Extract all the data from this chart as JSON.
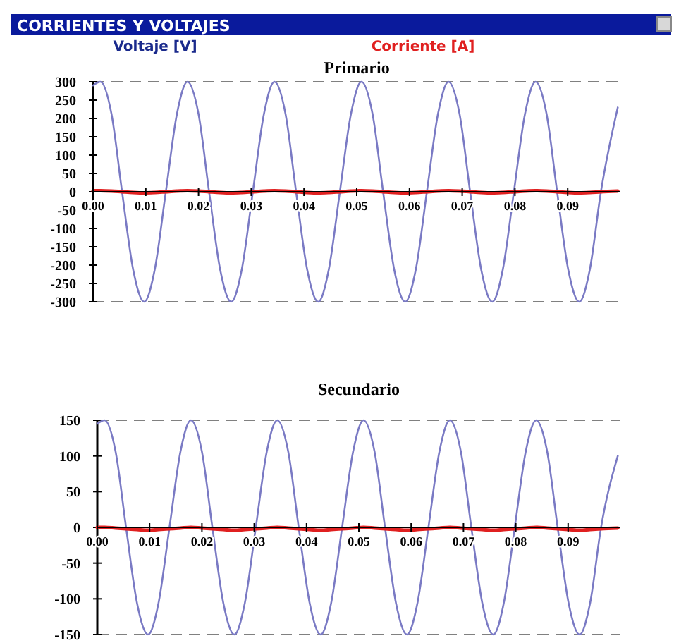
{
  "chart_data": [
    {
      "type": "line",
      "title": "Primario",
      "annotations": [
        "CORRIENTES Y VOLTAJES"
      ],
      "legend": "top",
      "line_style": "solid",
      "grid": false,
      "x": [
        0,
        0.0014,
        0.0035,
        0.0055,
        0.0076,
        0.0097,
        0.0117,
        0.0138,
        0.0159,
        0.0179,
        0.02,
        0.022,
        0.0241,
        0.0262,
        0.0282,
        0.0303,
        0.0324,
        0.0344,
        0.0365,
        0.0385,
        0.0406,
        0.0427,
        0.0447,
        0.0468,
        0.0489,
        0.0509,
        0.053,
        0.055,
        0.0571,
        0.0592,
        0.0612,
        0.0633,
        0.0654,
        0.0674,
        0.0695,
        0.0715,
        0.0736,
        0.0757,
        0.0777,
        0.0798,
        0.0819,
        0.0839,
        0.086,
        0.088,
        0.0901,
        0.0922,
        0.0942,
        0.0963,
        0.0995
      ],
      "series": [
        {
          "name": "Voltaje [V]",
          "color": "#7a7ac4",
          "values": [
            290,
            300,
            212,
            0,
            -212,
            -300,
            -212,
            0,
            212,
            300,
            212,
            0,
            -212,
            -300,
            -212,
            0,
            212,
            300,
            212,
            0,
            -212,
            -300,
            -212,
            0,
            212,
            300,
            212,
            0,
            -212,
            -300,
            -212,
            0,
            212,
            300,
            212,
            0,
            -212,
            -300,
            -212,
            0,
            212,
            300,
            212,
            0,
            -212,
            -300,
            -212,
            0,
            230
          ]
        },
        {
          "name": "Corriente [A]",
          "color": "#e02020",
          "values": [
            3,
            3,
            2,
            0,
            -2,
            -3,
            -2,
            0,
            2,
            3,
            2,
            0,
            -2,
            -3,
            -2,
            0,
            2,
            3,
            2,
            0,
            -2,
            -3,
            -2,
            0,
            2,
            3,
            2,
            0,
            -2,
            -3,
            -2,
            0,
            2,
            3,
            2,
            0,
            -2,
            -3,
            -2,
            0,
            2,
            3,
            2,
            0,
            -2,
            -3,
            -2,
            0,
            2
          ]
        }
      ],
      "xlim": [
        0,
        0.1
      ],
      "xticks": [
        {
          "value": 0,
          "label": "0.00"
        },
        0.01,
        0.02,
        0.03,
        0.04,
        0.05,
        0.06,
        0.07,
        0.08,
        0.09
      ],
      "ylim": [
        -300,
        300
      ],
      "yticks": [
        -300,
        -250,
        -200,
        -150,
        -100,
        -50,
        0,
        50,
        100,
        150,
        200,
        250,
        300
      ],
      "ref_lines": [
        {
          "axis": "y",
          "value": 300,
          "color": "#808080",
          "line_style": "dashed"
        },
        {
          "axis": "y",
          "value": -300,
          "color": "#808080",
          "line_style": "dashed"
        }
      ]
    },
    {
      "type": "line",
      "title": "Secundario",
      "legend": false,
      "line_style": "solid",
      "grid": false,
      "x": [
        0,
        0.0014,
        0.0035,
        0.0055,
        0.0076,
        0.0097,
        0.0117,
        0.0138,
        0.0159,
        0.0179,
        0.02,
        0.022,
        0.0241,
        0.0262,
        0.0282,
        0.0303,
        0.0324,
        0.0344,
        0.0365,
        0.0385,
        0.0406,
        0.0427,
        0.0447,
        0.0468,
        0.0489,
        0.0509,
        0.053,
        0.055,
        0.0571,
        0.0592,
        0.0612,
        0.0633,
        0.0654,
        0.0674,
        0.0695,
        0.0715,
        0.0736,
        0.0757,
        0.0777,
        0.0798,
        0.0819,
        0.0839,
        0.086,
        0.088,
        0.0901,
        0.0922,
        0.0942,
        0.0963,
        0.0995
      ],
      "series": [
        {
          "color": "#7a7ac4",
          "values": [
            145,
            150,
            106,
            0,
            -106,
            -150,
            -106,
            0,
            106,
            150,
            106,
            0,
            -106,
            -150,
            -106,
            0,
            106,
            150,
            106,
            0,
            -106,
            -150,
            -106,
            0,
            106,
            150,
            106,
            0,
            -106,
            -150,
            -106,
            0,
            106,
            150,
            106,
            0,
            -106,
            -150,
            -106,
            0,
            106,
            150,
            106,
            0,
            -106,
            -150,
            -106,
            0,
            100
          ]
        },
        {
          "color": "#e02020",
          "values": [
            0,
            0,
            -1,
            -2,
            -3,
            -4,
            -3,
            -2,
            -1,
            0,
            -1,
            -2,
            -3,
            -4,
            -3,
            -2,
            -1,
            0,
            -1,
            -2,
            -3,
            -4,
            -3,
            -2,
            -1,
            0,
            -1,
            -2,
            -3,
            -4,
            -3,
            -2,
            -1,
            0,
            -1,
            -2,
            -3,
            -4,
            -3,
            -2,
            -1,
            0,
            -1,
            -2,
            -3,
            -4,
            -3,
            -2,
            -1
          ]
        }
      ],
      "xlim": [
        0,
        0.1
      ],
      "xticks": [
        {
          "value": 0,
          "label": "0.00"
        },
        0.01,
        0.02,
        0.03,
        0.04,
        0.05,
        0.06,
        0.07,
        0.08,
        0.09
      ],
      "ylim": [
        -150,
        150
      ],
      "yticks": [
        -150,
        -100,
        -50,
        0,
        50,
        100,
        150
      ],
      "ref_lines": [
        {
          "axis": "y",
          "value": 150,
          "color": "#808080",
          "line_style": "dashed"
        },
        {
          "axis": "y",
          "value": -150,
          "color": "#808080",
          "line_style": "dashed"
        }
      ]
    }
  ]
}
